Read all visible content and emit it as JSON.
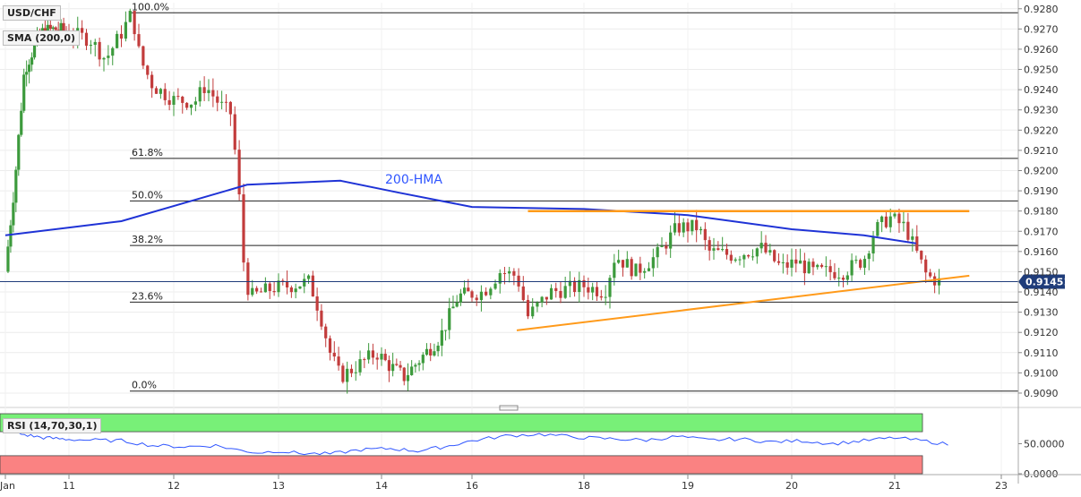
{
  "symbol": "USD/CHF",
  "sma_label": "SMA (200,0)",
  "rsi_label": "RSI (14,70,30,1)",
  "hma_label": "200-HMA",
  "colors": {
    "up": "#3c9a3c",
    "down": "#c23c3c",
    "hma": "#1f33d6",
    "trend": "#ff9a1a",
    "rsi_line": "#2f55ff",
    "rsi_overbought": "#78f078",
    "rsi_oversold": "#fa8282",
    "price_tag": "#1f3c7a"
  },
  "chart_data": {
    "type": "candlestick",
    "x_ticks": [
      "Jan",
      "11",
      "12",
      "13",
      "14",
      "16",
      "18",
      "19",
      "20",
      "21",
      "23"
    ],
    "ylim": [
      0.9086,
      0.9283
    ],
    "y_ticks": [
      "0.9280",
      "0.9270",
      "0.9260",
      "0.9250",
      "0.9240",
      "0.9230",
      "0.9220",
      "0.9210",
      "0.9200",
      "0.9190",
      "0.9180",
      "0.9170",
      "0.9160",
      "0.9150",
      "0.9140",
      "0.9130",
      "0.9120",
      "0.9110",
      "0.9100",
      "0.9090"
    ],
    "last_price": "0.91451",
    "fibonacci": [
      {
        "label": "100.0%",
        "value": 0.9278
      },
      {
        "label": "61.8%",
        "value": 0.9206
      },
      {
        "label": "50.0%",
        "value": 0.9185
      },
      {
        "label": "38.2%",
        "value": 0.9163
      },
      {
        "label": "23.6%",
        "value": 0.9135
      },
      {
        "label": "0.0%",
        "value": 0.9091
      }
    ],
    "hma_200": [
      [
        0,
        0.9168
      ],
      [
        1.5,
        0.9175
      ],
      [
        2.7,
        0.9193
      ],
      [
        3.6,
        0.9195
      ],
      [
        4.2,
        0.9189
      ],
      [
        5.0,
        0.9182
      ],
      [
        6.0,
        0.9181
      ],
      [
        7.0,
        0.9178
      ],
      [
        8.0,
        0.9171
      ],
      [
        8.7,
        0.9168
      ],
      [
        9.2,
        0.9164
      ]
    ],
    "resistance_line": [
      [
        5.5,
        0.918
      ],
      [
        9.7,
        0.918
      ]
    ],
    "support_line": [
      [
        5.4,
        0.9121
      ],
      [
        9.7,
        0.9148
      ]
    ],
    "rsi": {
      "ylim": [
        0,
        100
      ],
      "y_ticks": [
        "50.0000",
        "0.0000"
      ],
      "overbought": 70,
      "oversold": 30,
      "points": [
        [
          0,
          72
        ],
        [
          0.3,
          65
        ],
        [
          0.6,
          60
        ],
        [
          0.9,
          58
        ],
        [
          1.2,
          56
        ],
        [
          1.5,
          55
        ],
        [
          1.8,
          47
        ],
        [
          2.1,
          45
        ],
        [
          2.4,
          47
        ],
        [
          2.6,
          40
        ],
        [
          2.8,
          35
        ],
        [
          3.0,
          38
        ],
        [
          3.2,
          34
        ],
        [
          3.5,
          33
        ],
        [
          3.8,
          40
        ],
        [
          4.1,
          42
        ],
        [
          4.4,
          38
        ],
        [
          4.7,
          45
        ],
        [
          5.0,
          55
        ],
        [
          5.3,
          63
        ],
        [
          5.6,
          66
        ],
        [
          6.0,
          60
        ],
        [
          6.3,
          58
        ],
        [
          6.6,
          56
        ],
        [
          6.9,
          62
        ],
        [
          7.2,
          56
        ],
        [
          7.5,
          58
        ],
        [
          7.8,
          53
        ],
        [
          8.1,
          55
        ],
        [
          8.4,
          50
        ],
        [
          8.7,
          55
        ],
        [
          9.0,
          60
        ],
        [
          9.3,
          54
        ],
        [
          9.5,
          49
        ]
      ]
    }
  }
}
